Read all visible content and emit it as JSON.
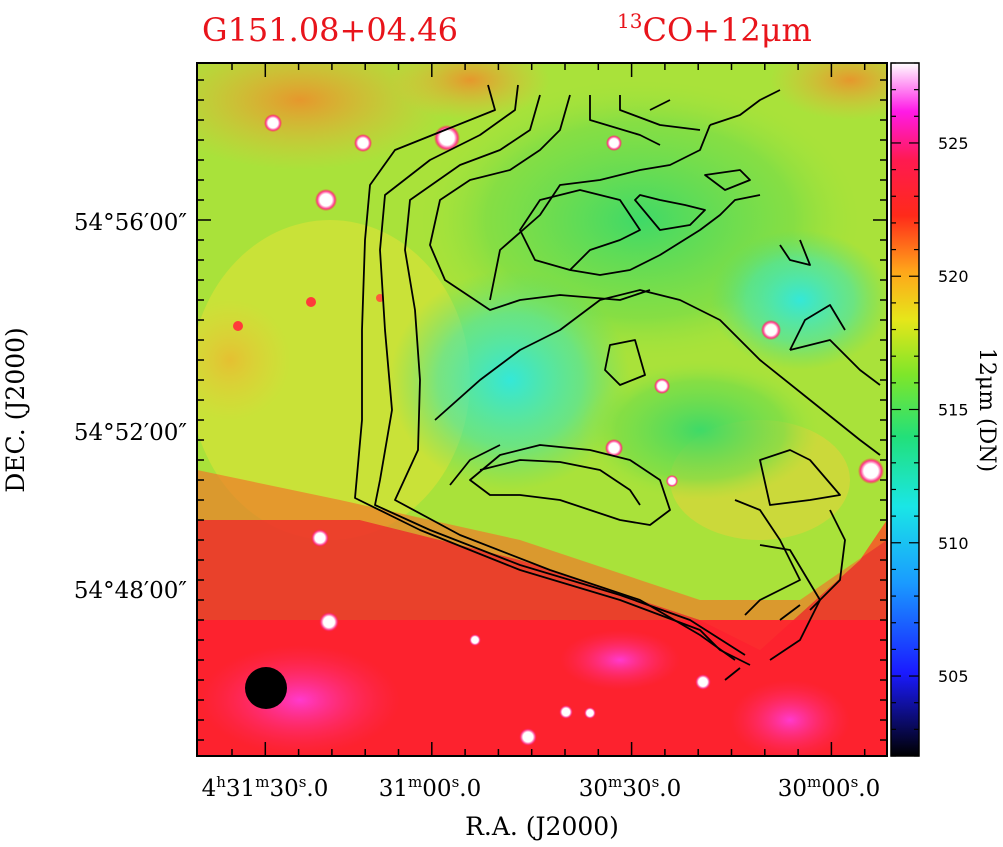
{
  "title_source": "G151.08+04.46",
  "title_tracer_sup": "13",
  "title_tracer": "CO+12μm",
  "ra_ticks": [
    {
      "h": "4",
      "hu": "h",
      "m": "31",
      "mu": "m",
      "s": "30",
      "su": "s",
      "frac": ".0"
    },
    {
      "h": "",
      "hu": "",
      "m": "31",
      "mu": "m",
      "s": "00",
      "su": "s",
      "frac": ".0"
    },
    {
      "h": "",
      "hu": "",
      "m": "30",
      "mu": "m",
      "s": "30",
      "su": "s",
      "frac": ".0"
    },
    {
      "h": "",
      "hu": "",
      "m": "30",
      "mu": "m",
      "s": "00",
      "su": "s",
      "frac": ".0"
    }
  ],
  "dec_ticks": [
    "54°56′00″",
    "54°52′00″",
    "54°48′00″"
  ],
  "xlabel": "R.A.  (J2000)",
  "ylabel": "DEC.  (J2000)",
  "colorbar": {
    "label": "12μm (DN)",
    "ticks": [
      525,
      520,
      515,
      510,
      505
    ],
    "range": [
      502,
      528
    ]
  },
  "colors": {
    "title": "#e8141b",
    "contour": "#000000"
  }
}
